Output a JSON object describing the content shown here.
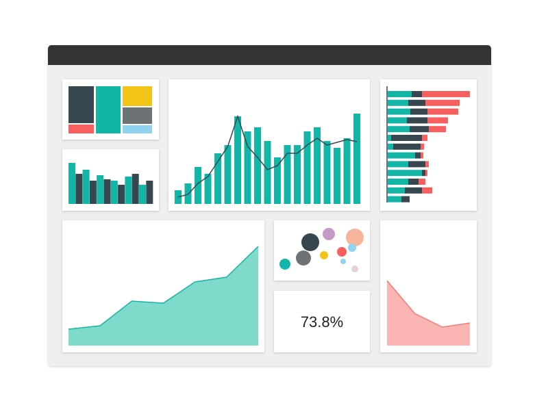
{
  "kpi": "73.8%",
  "column_chart": {
    "type": "bar",
    "color": "#13b5a6",
    "line_color": "#37474f",
    "values": [
      20,
      30,
      54,
      44,
      74,
      86,
      128,
      106,
      112,
      92,
      68,
      86,
      86,
      106,
      112,
      92,
      82,
      96,
      132
    ],
    "line": [
      10,
      14,
      30,
      40,
      62,
      84,
      128,
      84,
      68,
      50,
      56,
      74,
      74,
      86,
      96,
      86,
      90,
      94,
      91
    ]
  },
  "pair_chart": {
    "type": "bar",
    "series": [
      {
        "color": "#13b5a6",
        "values": [
          60,
          50,
          42,
          34,
          40,
          28
        ]
      },
      {
        "color": "#37474f",
        "values": [
          44,
          34,
          36,
          28,
          44,
          34
        ]
      }
    ]
  },
  "stacked_chart": {
    "type": "hbar",
    "series": [
      {
        "color": "#13b5a6",
        "values": [
          35,
          30,
          33,
          28,
          32,
          5,
          8,
          40,
          30,
          50,
          30,
          25,
          20
        ]
      },
      {
        "color": "#37474f",
        "values": [
          15,
          25,
          25,
          30,
          28,
          45,
          40,
          8,
          25,
          5,
          15,
          25,
          12
        ]
      },
      {
        "color": "#f7605f",
        "values": [
          70,
          50,
          45,
          30,
          25,
          8,
          5,
          4,
          5,
          3,
          10,
          15,
          0
        ]
      }
    ]
  },
  "area_chart": {
    "type": "area",
    "color": "#7fdacb",
    "line_color": "#13b5a6",
    "values": [
      24,
      29,
      65,
      62,
      93,
      100,
      145
    ]
  },
  "pink_area_chart": {
    "type": "area",
    "color": "#fbb6b3",
    "line_color": "#f47a75",
    "values": [
      95,
      47,
      27,
      33
    ]
  }
}
